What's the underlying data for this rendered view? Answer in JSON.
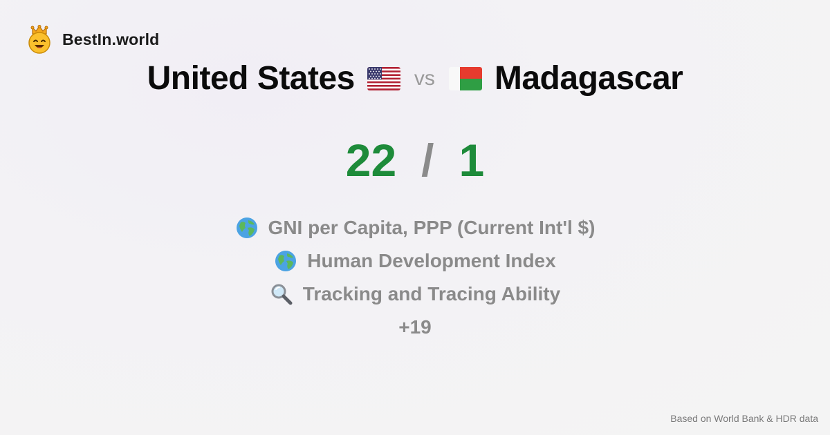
{
  "brand": {
    "name": "BestIn.world",
    "logo_icon": "crowned-smiley-icon"
  },
  "comparison": {
    "left_country": "United States",
    "left_flag": "us-flag-icon",
    "vs_label": "vs",
    "right_country": "Madagascar",
    "right_flag": "madagascar-flag-icon"
  },
  "score": {
    "left": "22",
    "separator": "/",
    "right": "1",
    "color": "#1e8b3a"
  },
  "metrics": [
    {
      "icon": "globe-icon",
      "label": "GNI per Capita, PPP (Current Int'l $)"
    },
    {
      "icon": "globe-icon",
      "label": "Human Development Index"
    },
    {
      "icon": "magnifier-icon",
      "label": "Tracking and Tracing Ability"
    }
  ],
  "more_count": "+19",
  "footer": {
    "source": "Based on World Bank & HDR data"
  }
}
